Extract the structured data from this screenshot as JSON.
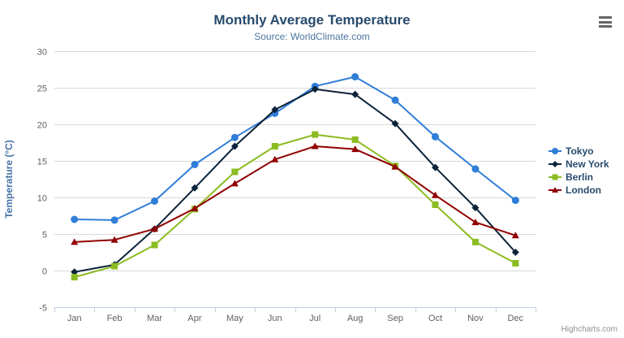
{
  "header": {
    "title": "Monthly Average Temperature",
    "subtitle": "Source: WorldClimate.com",
    "menu_icon": "hamburger-menu-icon"
  },
  "credit": {
    "label": "Highcharts.com"
  },
  "chart_data": {
    "type": "line",
    "title": "Monthly Average Temperature",
    "subtitle": "Source: WorldClimate.com",
    "categories": [
      "Jan",
      "Feb",
      "Mar",
      "Apr",
      "May",
      "Jun",
      "Jul",
      "Aug",
      "Sep",
      "Oct",
      "Nov",
      "Dec"
    ],
    "series": [
      {
        "name": "Tokyo",
        "color": "#2f7ed8",
        "marker": "circle",
        "values": [
          7.0,
          6.9,
          9.5,
          14.5,
          18.2,
          21.5,
          25.2,
          26.5,
          23.3,
          18.3,
          13.9,
          9.6
        ]
      },
      {
        "name": "New York",
        "color": "#0d233a",
        "marker": "diamond",
        "values": [
          -0.2,
          0.8,
          5.7,
          11.3,
          17.0,
          22.0,
          24.8,
          24.1,
          20.1,
          14.1,
          8.6,
          2.5
        ]
      },
      {
        "name": "Berlin",
        "color": "#8bbc21",
        "marker": "square",
        "values": [
          -0.9,
          0.6,
          3.5,
          8.4,
          13.5,
          17.0,
          18.6,
          17.9,
          14.3,
          9.0,
          3.9,
          1.0
        ]
      },
      {
        "name": "London",
        "color": "#910000",
        "marker": "triangle-up",
        "values": [
          3.9,
          4.2,
          5.7,
          8.5,
          11.9,
          15.2,
          17.0,
          16.6,
          14.2,
          10.3,
          6.6,
          4.8
        ]
      }
    ],
    "xlabel": "",
    "ylabel": "Temperature (°C)",
    "ylim": [
      -5,
      30
    ],
    "yticks": [
      -5,
      0,
      5,
      10,
      15,
      20,
      25,
      30
    ],
    "grid": true,
    "legend_position": "right",
    "grid_color": "#d8d8d8",
    "axis_line_color": "#c0d0e0",
    "tick_label_color": "#606060",
    "axis_title_color": "#4572a7"
  }
}
